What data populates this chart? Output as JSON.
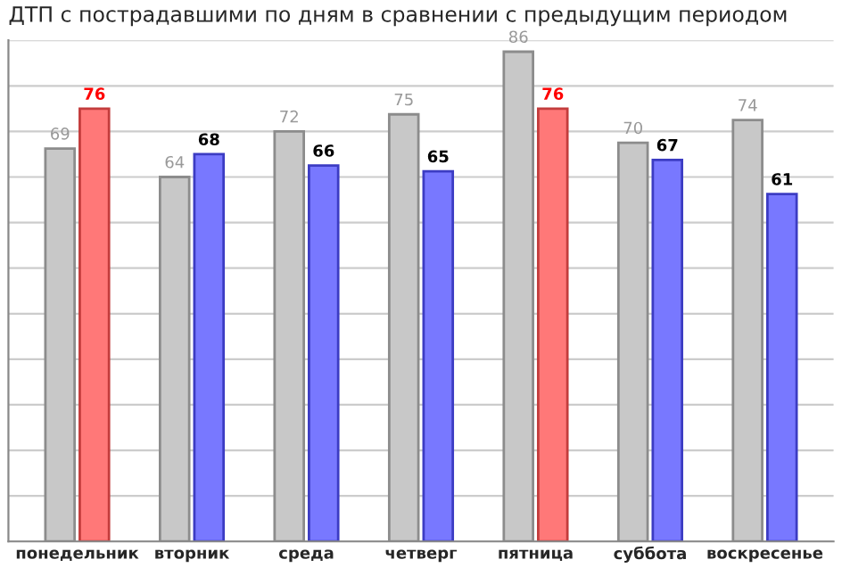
{
  "chart_data": {
    "type": "bar",
    "title": "ДТП с пострадавшими по дням в сравнении с предыдущим периодом",
    "categories": [
      "понедельник",
      "вторник",
      "среда",
      "четверг",
      "пятница",
      "суббота",
      "воскресенье"
    ],
    "series": [
      {
        "colors": [
          "#c8c8c8",
          "#c8c8c8",
          "#c8c8c8",
          "#c8c8c8",
          "#c8c8c8",
          "#c8c8c8",
          "#c8c8c8"
        ],
        "values": [
          69,
          64,
          72,
          75,
          86,
          70,
          74
        ]
      },
      {
        "colors": [
          "#ff7878",
          "#7878ff",
          "#7878ff",
          "#7878ff",
          "#ff7878",
          "#7878ff",
          "#7878ff"
        ],
        "values": [
          76,
          68,
          66,
          65,
          76,
          67,
          61
        ]
      }
    ],
    "data_labels": true,
    "ylim": [
      0,
      88
    ],
    "yticks": [
      {
        "value": 0,
        "label": null
      },
      {
        "value": 8,
        "label": null
      },
      {
        "value": 16,
        "label": null
      },
      {
        "value": 24,
        "label": null
      },
      {
        "value": 32,
        "label": null
      },
      {
        "value": 40,
        "label": null
      },
      {
        "value": 48,
        "label": null
      },
      {
        "value": 56,
        "label": null
      },
      {
        "value": 64,
        "label": null
      },
      {
        "value": 72,
        "label": null
      },
      {
        "value": 80,
        "label": null
      },
      {
        "value": 88,
        "label": null
      }
    ],
    "grid": "y",
    "tick_labels": "x"
  }
}
